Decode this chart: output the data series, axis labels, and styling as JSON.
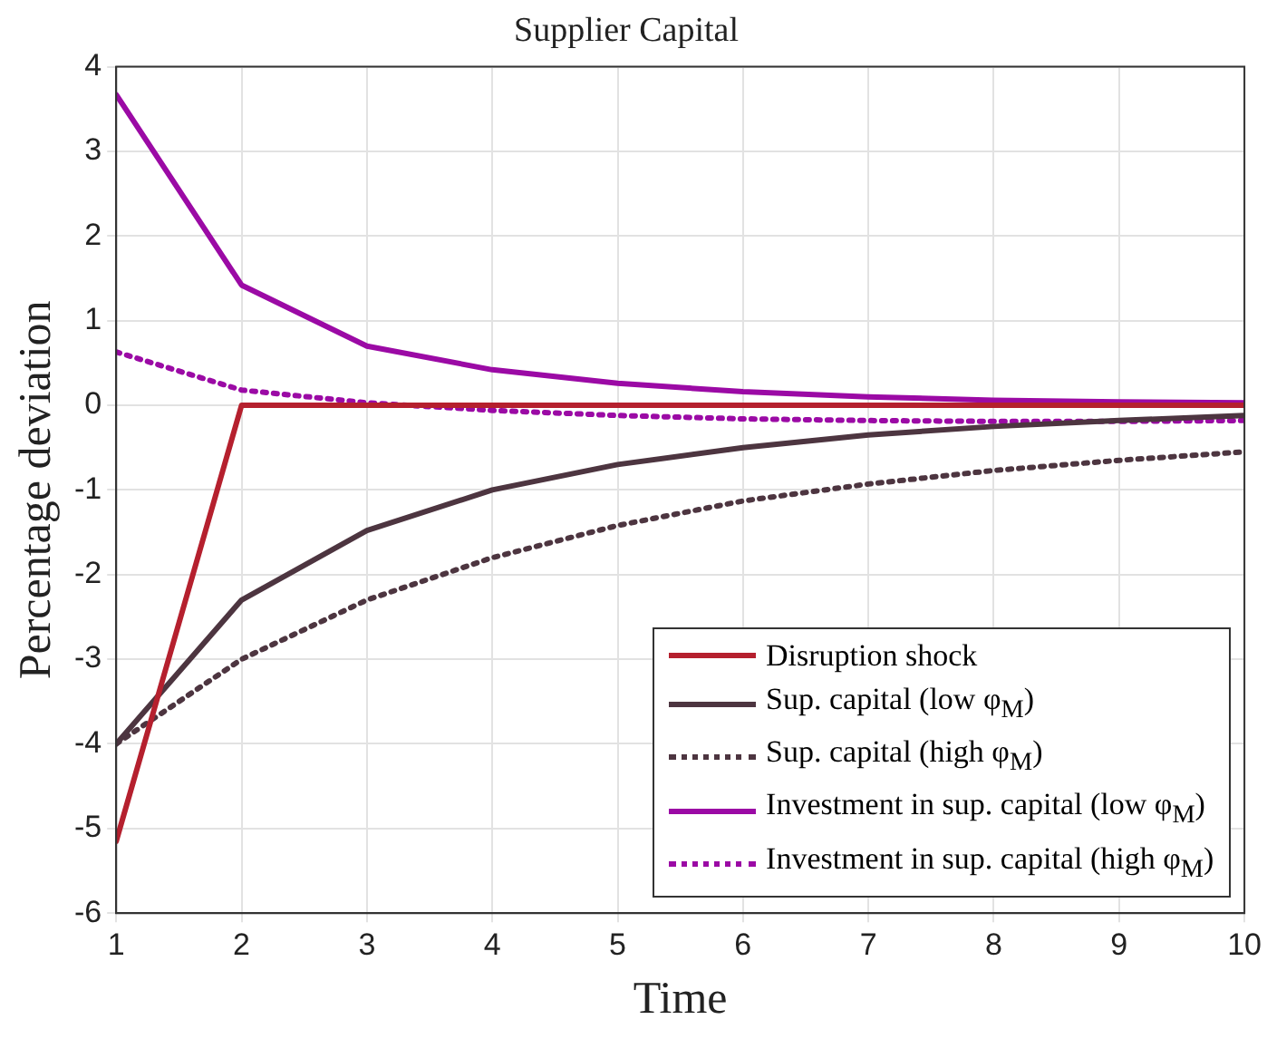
{
  "chart_data": {
    "type": "line",
    "title": "Supplier Capital",
    "xlabel": "Time",
    "ylabel": "Percentage deviation",
    "x": [
      1,
      2,
      3,
      4,
      5,
      6,
      7,
      8,
      9,
      10
    ],
    "xlim": [
      1,
      10
    ],
    "xticks": [
      1,
      2,
      3,
      4,
      5,
      6,
      7,
      8,
      9,
      10
    ],
    "ylim": [
      -6,
      4
    ],
    "yticks": [
      -6,
      -5,
      -4,
      -3,
      -2,
      -1,
      0,
      1,
      2,
      3,
      4
    ],
    "grid": true,
    "legend": "bottom right",
    "marker": "none",
    "series": [
      {
        "name": "Disruption shock",
        "color": "#b5202e",
        "line_style": "solid",
        "values": [
          -5.15,
          0,
          0,
          0,
          0,
          0,
          0,
          0,
          0,
          0
        ]
      },
      {
        "name": "Sup. capital (low φ$_{M}$)",
        "color": "#4d3540",
        "line_style": "solid",
        "values": [
          -4.0,
          -2.3,
          -1.48,
          -1.0,
          -0.7,
          -0.5,
          -0.35,
          -0.25,
          -0.18,
          -0.12
        ]
      },
      {
        "name": "Sup. capital (high φ$_{M}$)",
        "color": "#4d3540",
        "line_style": "dotted",
        "values": [
          -4.0,
          -3.0,
          -2.3,
          -1.8,
          -1.42,
          -1.13,
          -0.93,
          -0.77,
          -0.65,
          -0.55
        ]
      },
      {
        "name": "Investment in sup. capital (low φ$_{M}$)",
        "color": "#9b0aa5",
        "line_style": "solid",
        "values": [
          3.67,
          1.42,
          0.7,
          0.42,
          0.26,
          0.16,
          0.1,
          0.06,
          0.04,
          0.03
        ]
      },
      {
        "name": "Investment in sup. capital (high φ$_{M}$)",
        "color": "#9b0aa5",
        "line_style": "dotted",
        "values": [
          0.63,
          0.18,
          0.03,
          -0.06,
          -0.12,
          -0.16,
          -0.18,
          -0.19,
          -0.19,
          -0.18
        ]
      }
    ]
  }
}
